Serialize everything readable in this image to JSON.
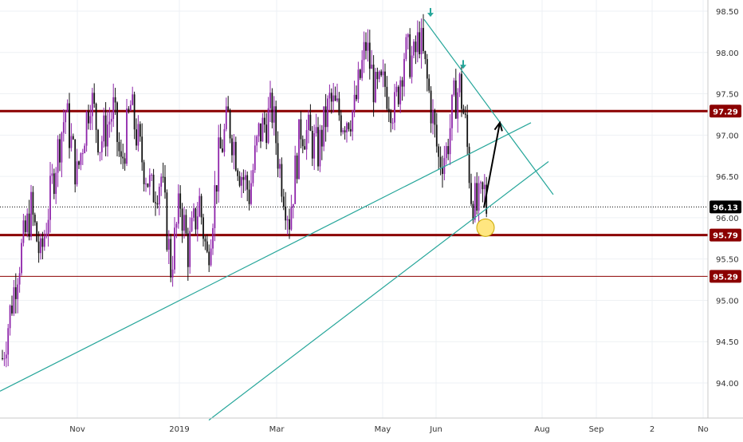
{
  "chart_data": {
    "type": "candlestick",
    "y_ticks": [
      "98.50",
      "98.00",
      "97.50",
      "97.00",
      "96.50",
      "96.00",
      "95.50",
      "95.00",
      "94.50",
      "94.00"
    ],
    "ylim": [
      93.6,
      98.65
    ],
    "x_ticks": [
      "Nov",
      "2019",
      "Mar",
      "May",
      "Jun",
      "Aug",
      "Sep",
      "2",
      "No"
    ],
    "bull_color": "#8e24aa",
    "bear_color": "#111111",
    "price_tags": [
      {
        "label": "97.29",
        "value": 97.29,
        "color": "#8b0000",
        "style": "thick"
      },
      {
        "label": "96.13",
        "value": 96.13,
        "color": "#000000",
        "style": "dotted"
      },
      {
        "label": "95.79",
        "value": 95.79,
        "color": "#8b0000",
        "style": "thick"
      },
      {
        "label": "95.29",
        "value": 95.29,
        "color": "#8b0000",
        "style": "thin"
      }
    ],
    "ohlc_anchors": [
      [
        0,
        94.3
      ],
      [
        8,
        95.4
      ],
      [
        15,
        96.1
      ],
      [
        20,
        95.5
      ],
      [
        28,
        96.7
      ],
      [
        33,
        97.3
      ],
      [
        39,
        96.5
      ],
      [
        46,
        97.5
      ],
      [
        51,
        96.9
      ],
      [
        58,
        97.3
      ],
      [
        62,
        96.6
      ],
      [
        67,
        97.35
      ],
      [
        72,
        96.8
      ],
      [
        78,
        96.3
      ],
      [
        83,
        96.5
      ],
      [
        88,
        95.4
      ],
      [
        93,
        96.2
      ],
      [
        97,
        95.6
      ],
      [
        103,
        96.2
      ],
      [
        107,
        95.5
      ],
      [
        113,
        96.7
      ],
      [
        118,
        97.2
      ],
      [
        124,
        96.6
      ],
      [
        129,
        96.3
      ],
      [
        134,
        97.0
      ],
      [
        141,
        97.3
      ],
      [
        145,
        96.6
      ],
      [
        150,
        96.0
      ],
      [
        156,
        97.1
      ],
      [
        160,
        97.0
      ],
      [
        165,
        96.8
      ],
      [
        171,
        97.4
      ],
      [
        178,
        97.2
      ],
      [
        184,
        97.3
      ],
      [
        190,
        98.1
      ],
      [
        195,
        97.5
      ],
      [
        200,
        97.6
      ],
      [
        205,
        97.3
      ],
      [
        210,
        98.0
      ],
      [
        215,
        97.9
      ],
      [
        218,
        98.2
      ],
      [
        223,
        97.5
      ],
      [
        228,
        96.7
      ],
      [
        232,
        96.8
      ],
      [
        236,
        97.4
      ],
      [
        239,
        97.6
      ],
      [
        242,
        97.1
      ],
      [
        245,
        96.3
      ],
      [
        248,
        96.1
      ],
      [
        252,
        96.3
      ],
      [
        253,
        96.13
      ]
    ],
    "trend_lines": [
      {
        "name": "lower-trendline",
        "color": "#26a69a",
        "x": [
          0,
          666
        ],
        "y": [
          93.9,
          97.15
        ]
      },
      {
        "name": "channel-trendline",
        "color": "#26a69a",
        "x": [
          262,
          688
        ],
        "y": [
          93.55,
          96.68
        ]
      },
      {
        "name": "falling-trendline",
        "color": "#26a69a",
        "x": [
          532,
          694
        ],
        "y": [
          98.4,
          96.28
        ]
      }
    ],
    "arrow": {
      "color": "#000000",
      "from": [
        607,
        96.12
      ],
      "to": [
        627,
        97.15
      ]
    },
    "highlight_circle": {
      "x": 609,
      "y": 95.88,
      "color": "#ffe680"
    },
    "pivot_markers": [
      {
        "x": 540,
        "y": 98.48
      },
      {
        "x": 581,
        "y": 97.85
      }
    ],
    "pivot_color": "#26a69a"
  }
}
